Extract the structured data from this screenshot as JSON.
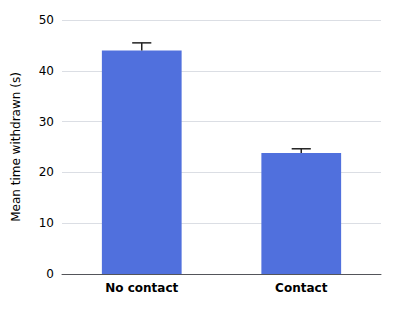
{
  "chart_data": {
    "type": "bar",
    "categories": [
      "No contact",
      "Contact"
    ],
    "values": [
      44.0,
      23.8
    ],
    "errors": [
      1.5,
      0.85
    ],
    "ylabel": "Mean time withdrawn (s)",
    "ylim": [
      0,
      50
    ],
    "yticks": [
      0,
      10,
      20,
      30,
      40,
      50
    ],
    "grid": true
  }
}
